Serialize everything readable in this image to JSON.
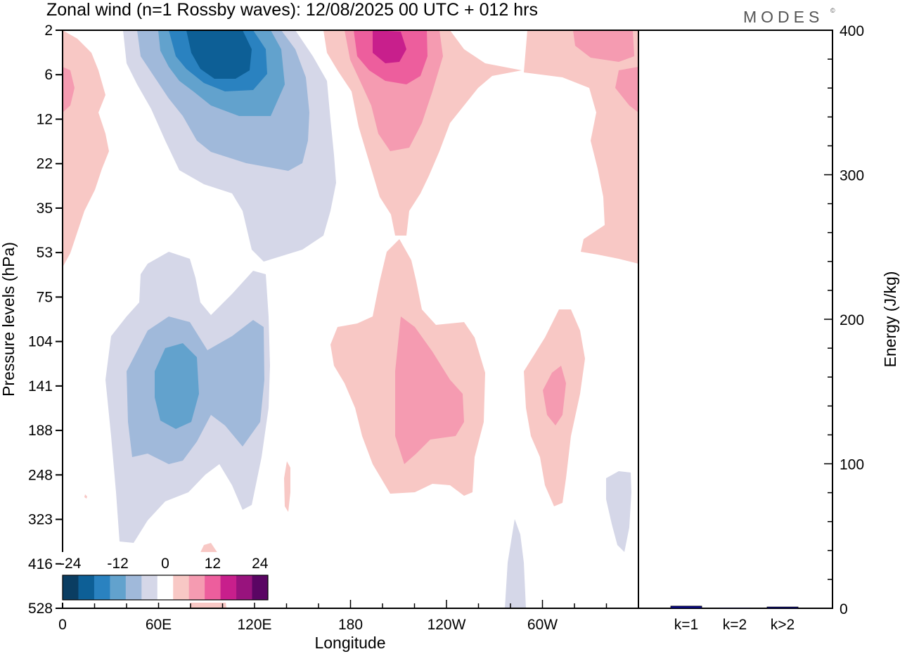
{
  "header": {
    "title": "Zonal wind (n=1 Rossby waves):  12/08/2025  00 UTC  + 012 hrs",
    "brand": "MODES",
    "brand_mark": "©"
  },
  "chart_data": [
    {
      "type": "heatmap",
      "title": "Zonal wind (n=1 Rossby waves):  12/08/2025  00 UTC  + 012 hrs",
      "xlabel": "Longitude",
      "ylabel": "Pressure levels (hPa)",
      "x_ticks": [
        "0",
        "60E",
        "120E",
        "180",
        "120W",
        "60W"
      ],
      "x_range_deg_east": [
        0,
        360
      ],
      "y_levels_hPa": [
        "2",
        "6",
        "12",
        "22",
        "35",
        "53",
        "75",
        "104",
        "141",
        "188",
        "248",
        "323",
        "416",
        "528"
      ],
      "colorbar": {
        "labels": [
          "-24",
          "-12",
          "0",
          "12",
          "24"
        ],
        "levels": [
          -24,
          -20,
          -16,
          -12,
          -8,
          -4,
          4,
          8,
          12,
          16,
          20,
          24
        ],
        "colors": [
          "#0a3d62",
          "#0d5f96",
          "#2a82c0",
          "#62a2cd",
          "#a0b9da",
          "#d5d7e8",
          "#ffffff",
          "#f8c8c5",
          "#f59bb1",
          "#ed5e9d",
          "#c81f8c",
          "#98137d",
          "#5a0563"
        ]
      },
      "contours_note": "filled contours of zonal wind anomalies; easterlies (blue) near 60E-130E upper levels, westerlies (pink) near 180-160W"
    },
    {
      "type": "bar",
      "categories": [
        "k=1",
        "k=2",
        "k>2"
      ],
      "values": [
        1.5,
        0.3,
        0.9
      ],
      "ylabel": "Energy (J/kg)",
      "ylim": [
        0,
        400
      ],
      "y_ticks": [
        "0",
        "100",
        "200",
        "300",
        "400"
      ],
      "bar_color": "#0a0a8c"
    }
  ]
}
